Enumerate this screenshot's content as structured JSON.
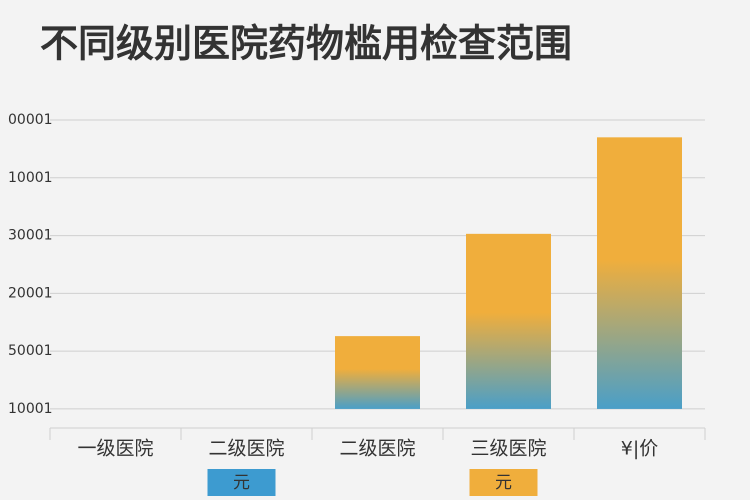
{
  "chart_data": {
    "type": "bar",
    "title": "不同级别医院药物槛用检查范围",
    "categories": [
      "一级医院",
      "二级医院",
      "二级医院",
      "三级医院",
      "¥|价"
    ],
    "values": [
      null,
      null,
      1.26,
      3.03,
      4.7
    ],
    "color": "#f0ae3c",
    "gradient_color": "#4a9fc8",
    "ylim": [
      -0.33,
      5.3
    ],
    "yticks": [
      {
        "value": 0,
        "label": "10001"
      },
      {
        "value": 1,
        "label": "50001"
      },
      {
        "value": 2,
        "label": "20001"
      },
      {
        "value": 3,
        "label": "30001"
      },
      {
        "value": 4,
        "label": "10001"
      },
      {
        "value": 5,
        "label": "00001"
      }
    ],
    "grid": true,
    "badges": [
      {
        "label": "元",
        "color": "#3d9bd0"
      },
      {
        "label": "元",
        "color": "#f0ae3c"
      }
    ]
  }
}
